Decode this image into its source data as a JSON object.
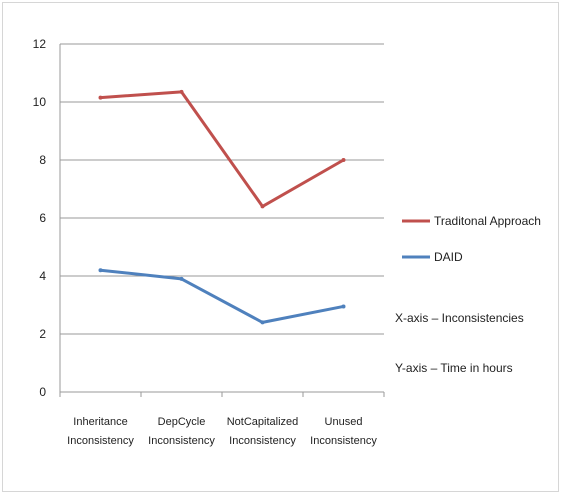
{
  "chart_data": {
    "type": "line",
    "categories": [
      [
        "Inheritance",
        "Inconsistency"
      ],
      [
        "DepCycle",
        "Inconsistency"
      ],
      [
        "NotCapitalized",
        "Inconsistency"
      ],
      [
        "Unused",
        "Inconsistency"
      ]
    ],
    "series": [
      {
        "name": "Traditonal Approach",
        "color": "#c0504d",
        "values": [
          10.15,
          10.35,
          6.4,
          8.0
        ]
      },
      {
        "name": "DAID",
        "color": "#4f81bd",
        "values": [
          4.2,
          3.9,
          2.4,
          2.95
        ]
      }
    ],
    "ylim": [
      0,
      12
    ],
    "yticks": [
      0,
      2,
      4,
      6,
      8,
      10,
      12
    ],
    "grid": true,
    "legend_position": "right",
    "notes": [
      "X-axis – Inconsistencies",
      "Y-axis – Time in hours"
    ]
  }
}
